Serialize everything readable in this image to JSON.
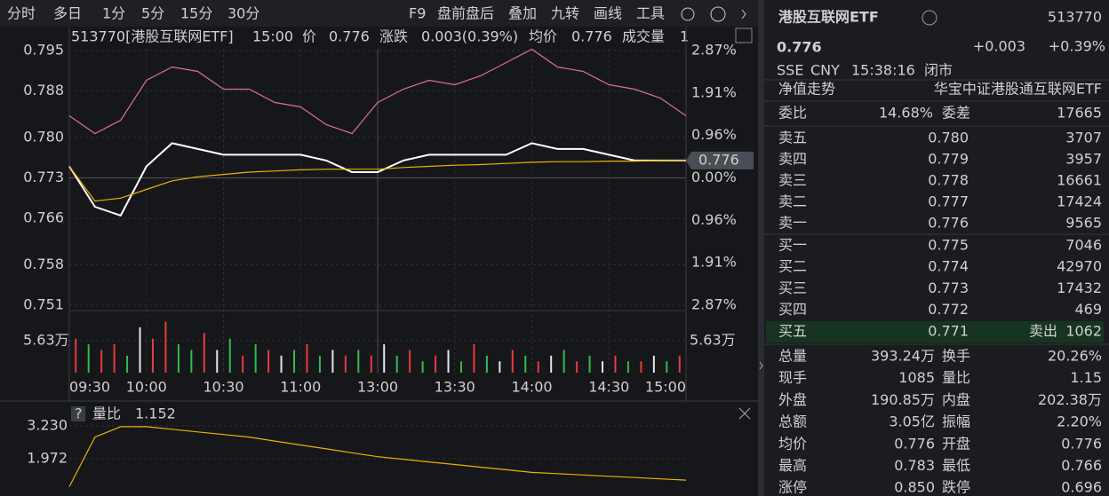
{
  "toolbar": {
    "tabs": [
      "分时",
      "多日",
      "1分",
      "5分",
      "15分",
      "30分"
    ],
    "tools": [
      "F9",
      "盘前盘后",
      "叠加",
      "九转",
      "画线",
      "工具"
    ]
  },
  "info_bar": {
    "code": "513770[港股互联网ETF]",
    "time": "15:00",
    "price_label": "价",
    "price": "0.776",
    "change_label": "涨跌",
    "change": "0.003(0.39%)",
    "avg_label": "均价",
    "avg": "0.776",
    "volume_label": "成交量",
    "volume": "1"
  },
  "chart_data": [
    {
      "type": "line",
      "ylim": [
        0.751,
        0.795
      ],
      "yticks": [
        {
          "value": 0.795,
          "label": "0.795"
        },
        {
          "value": 0.788,
          "label": "0.788"
        },
        {
          "value": 0.78,
          "label": "0.780"
        },
        {
          "value": 0.773,
          "label": "0.773"
        },
        {
          "value": 0.766,
          "label": "0.766"
        },
        {
          "value": 0.758,
          "label": "0.758"
        },
        {
          "value": 0.751,
          "label": "0.751"
        }
      ],
      "y2lim": [
        -2.87,
        2.87
      ],
      "y2ticks": [
        {
          "value": 2.87,
          "label": "2.87%"
        },
        {
          "value": 1.91,
          "label": "1.91%"
        },
        {
          "value": 0.96,
          "label": "0.96%"
        },
        {
          "value": 0,
          "label": "0.00%"
        },
        {
          "value": -0.96,
          "label": "0.96%"
        },
        {
          "value": -1.91,
          "label": "1.91%"
        },
        {
          "value": -2.87,
          "label": "2.87%"
        }
      ],
      "y2tick_colors": [
        "#e83b3b",
        "#e83b3b",
        "#e83b3b",
        "#c8c8c8",
        "#2ebd4e",
        "#2ebd4e",
        "#2ebd4e"
      ],
      "categories": [
        "09:30",
        null,
        null,
        "10:00",
        null,
        null,
        "10:30",
        null,
        null,
        "11:00",
        null,
        null,
        "13:00",
        null,
        null,
        "13:30",
        null,
        null,
        "14:00",
        null,
        null,
        "14:30",
        null,
        null,
        "15:00"
      ],
      "series": [
        {
          "color": "#ffffff",
          "values": [
            0.775,
            0.768,
            0.7665,
            0.775,
            0.779,
            0.778,
            0.777,
            0.777,
            0.777,
            0.777,
            0.776,
            0.774,
            0.774,
            0.776,
            0.777,
            0.777,
            0.777,
            0.777,
            0.779,
            0.778,
            0.778,
            0.777,
            0.776,
            0.776,
            0.776
          ]
        },
        {
          "color": "#e8b400",
          "values": [
            0.775,
            0.769,
            0.7695,
            0.771,
            0.7725,
            0.7732,
            0.7736,
            0.774,
            0.7742,
            0.7744,
            0.7745,
            0.7745,
            0.7745,
            0.7748,
            0.775,
            0.7752,
            0.7753,
            0.7755,
            0.7757,
            0.7758,
            0.7758,
            0.7759,
            0.7759,
            0.776,
            0.776
          ]
        },
        {
          "color": "#e0708a",
          "axis": "y2",
          "values": [
            1.4,
            1.0,
            1.3,
            2.2,
            2.5,
            2.4,
            2.0,
            2.0,
            1.7,
            1.6,
            1.2,
            1.0,
            1.7,
            2.0,
            2.2,
            2.1,
            2.3,
            2.6,
            2.9,
            2.5,
            2.4,
            2.1,
            2.0,
            1.8,
            1.4
          ]
        }
      ]
    },
    {
      "type": "bar",
      "ylim": [
        0,
        10.95
      ],
      "yticks": [
        {
          "value": 5.63,
          "label": "5.63万"
        }
      ],
      "values": [
        6,
        5,
        4,
        5,
        3,
        8,
        6,
        9,
        5,
        4,
        7,
        4,
        6,
        3,
        5,
        4,
        3,
        4,
        5,
        3,
        4,
        3,
        4,
        3,
        5,
        3,
        4,
        2,
        3,
        4,
        2,
        5,
        3,
        2,
        4,
        3,
        2,
        3,
        4,
        2,
        3,
        2,
        3,
        2,
        2,
        3,
        2,
        3
      ],
      "colors": [
        "#e83b3b",
        "#2ebd4e",
        "#e83b3b",
        "#e83b3b",
        "#2ebd4e",
        "#e6e6e6",
        "#e83b3b",
        "#e83b3b",
        "#2ebd4e",
        "#2ebd4e",
        "#e83b3b",
        "#e6e6e6",
        "#2ebd4e",
        "#e83b3b",
        "#2ebd4e",
        "#e83b3b",
        "#e6e6e6",
        "#2ebd4e",
        "#e83b3b",
        "#2ebd4e",
        "#e6e6e6",
        "#e83b3b",
        "#2ebd4e",
        "#e83b3b",
        "#e6e6e6",
        "#2ebd4e",
        "#e83b3b",
        "#2ebd4e",
        "#e83b3b",
        "#e6e6e6",
        "#2ebd4e",
        "#e83b3b",
        "#2ebd4e",
        "#e6e6e6",
        "#e83b3b",
        "#2ebd4e",
        "#e83b3b",
        "#e6e6e6",
        "#2ebd4e",
        "#e83b3b",
        "#2ebd4e",
        "#e6e6e6",
        "#e83b3b",
        "#2ebd4e",
        "#e83b3b",
        "#e6e6e6",
        "#2ebd4e",
        "#e83b3b"
      ]
    },
    {
      "type": "line",
      "help_icon": "?",
      "title": "量比",
      "title_value": "1.152",
      "ylim": [
        0.748,
        3.842
      ],
      "yticks": [
        {
          "value": 3.23,
          "label": "3.230"
        },
        {
          "value": 1.972,
          "label": "1.972"
        }
      ],
      "series": [
        {
          "color": "#e8b400",
          "values": [
            0.9,
            2.8,
            3.2,
            3.2,
            3.1,
            3.0,
            2.9,
            2.8,
            2.65,
            2.5,
            2.35,
            2.2,
            2.05,
            1.95,
            1.85,
            1.75,
            1.65,
            1.55,
            1.45,
            1.4,
            1.35,
            1.3,
            1.25,
            1.2,
            1.152
          ]
        }
      ]
    }
  ],
  "quote": {
    "name": "港股互联网ETF",
    "code": "513770",
    "price": "0.776",
    "change": "+0.003",
    "pct": "+0.39%",
    "market": "SSE",
    "currency": "CNY",
    "time": "15:38:16",
    "status": "闭市",
    "nav_label": "净值走势",
    "fund_name": "华宝中证港股通互联网ETF",
    "ratio_row": [
      "委比",
      "14.68%",
      "委差",
      "17665"
    ],
    "book": [
      [
        "卖五",
        "0.780",
        "3707"
      ],
      [
        "卖四",
        "0.779",
        "3957"
      ],
      [
        "卖三",
        "0.778",
        "16661"
      ],
      [
        "卖二",
        "0.777",
        "17424"
      ],
      [
        "卖一",
        "0.776",
        "9565"
      ],
      [
        "买一",
        "0.775",
        "7046"
      ],
      [
        "买二",
        "0.774",
        "42970"
      ],
      [
        "买三",
        "0.773",
        "17432"
      ],
      [
        "买四",
        "0.772",
        "469"
      ],
      [
        "买五",
        "0.771",
        "1062"
      ]
    ],
    "sell_out": "卖出",
    "stats": [
      [
        "总量",
        "393.24万",
        "换手",
        "20.26%"
      ],
      [
        "现手",
        "1085",
        "量比",
        "1.15"
      ],
      [
        "外盘",
        "190.85万",
        "内盘",
        "202.38万"
      ],
      [
        "总额",
        "3.05亿",
        "振幅",
        "2.20%"
      ],
      [
        "均价",
        "0.776",
        "开盘",
        "0.776"
      ],
      [
        "最高",
        "0.783",
        "最低",
        "0.766"
      ],
      [
        "涨停",
        "0.850",
        "跌停",
        "0.696"
      ]
    ]
  }
}
